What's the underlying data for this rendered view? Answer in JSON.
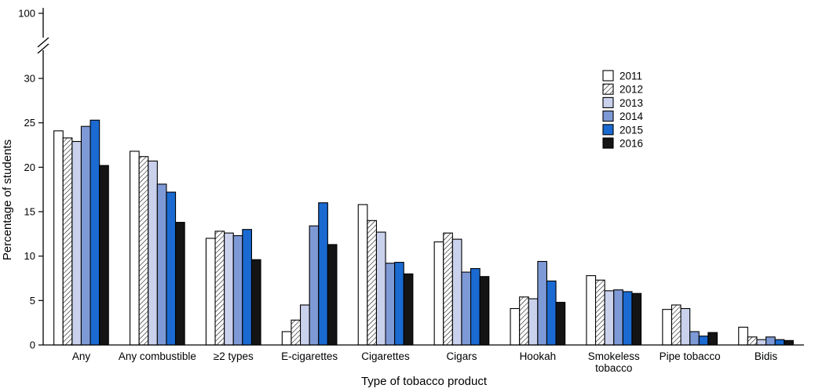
{
  "figure": {
    "background": "#ffffff"
  },
  "chart_data": {
    "type": "bar",
    "title": "",
    "xlabel": "Type of tobacco product",
    "ylabel": "Percentage of students",
    "ylim": [
      0,
      30
    ],
    "yticks": [
      0,
      5,
      10,
      15,
      20,
      25,
      30
    ],
    "y_axis_break": true,
    "y_break_top_label": "100",
    "grid": false,
    "legend_position": "upper-right-inside",
    "categories": [
      "Any",
      "Any combustible",
      "≥2 types",
      "E-cigarettes",
      "Cigarettes",
      "Cigars",
      "Hookah",
      "Smokeless tobacco",
      "Pipe tobacco",
      "Bidis"
    ],
    "wrap_labels": [
      "Smokeless tobacco"
    ],
    "series": [
      {
        "name": "2011",
        "fill": "#ffffff",
        "pattern": "none",
        "values": [
          24.1,
          21.8,
          12.0,
          1.5,
          15.8,
          11.6,
          4.1,
          7.8,
          4.0,
          2.0
        ]
      },
      {
        "name": "2012",
        "fill": "#ffffff",
        "pattern": "diagonal-hatch",
        "values": [
          23.3,
          21.2,
          12.8,
          2.8,
          14.0,
          12.6,
          5.4,
          7.3,
          4.5,
          0.9
        ]
      },
      {
        "name": "2013",
        "fill": "#c9d1ec",
        "pattern": "none",
        "values": [
          22.9,
          20.7,
          12.6,
          4.5,
          12.7,
          11.9,
          5.2,
          6.1,
          4.1,
          0.6
        ]
      },
      {
        "name": "2014",
        "fill": "#7e9ad6",
        "pattern": "none",
        "values": [
          24.6,
          18.1,
          12.3,
          13.4,
          9.2,
          8.2,
          9.4,
          6.2,
          1.5,
          0.9
        ]
      },
      {
        "name": "2015",
        "fill": "#1a6ad1",
        "pattern": "none",
        "values": [
          25.3,
          17.2,
          13.0,
          16.0,
          9.3,
          8.6,
          7.2,
          6.0,
          1.0,
          0.6
        ]
      },
      {
        "name": "2016",
        "fill": "#141414",
        "pattern": "none",
        "values": [
          20.2,
          13.8,
          9.6,
          11.3,
          8.0,
          7.7,
          4.8,
          5.8,
          1.4,
          0.5
        ]
      }
    ]
  }
}
